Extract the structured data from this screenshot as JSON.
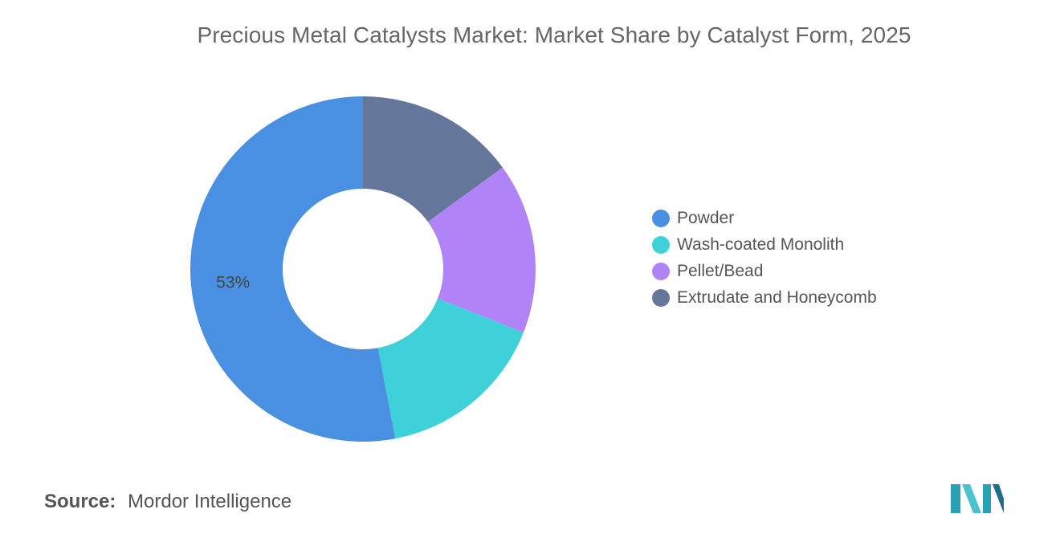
{
  "chart_data": {
    "type": "pie",
    "title": "Precious Metal Catalysts Market: Market Share by Catalyst Form, 2025",
    "categories": [
      "Powder",
      "Wash-coated Monolith",
      "Pellet/Bead",
      "Extrudate and Honeycomb"
    ],
    "values": [
      53,
      16,
      16,
      15
    ],
    "colors": [
      "#4a90e2",
      "#3fd1da",
      "#b084f7",
      "#64769a"
    ],
    "data_labels": [
      "53%",
      "",
      "",
      ""
    ],
    "donut": true,
    "legend_position": "right"
  },
  "source": {
    "label": "Source:",
    "text": "Mordor Intelligence"
  },
  "logo": {
    "icon": "mordor-intelligence-logo-icon",
    "colors": [
      "#2aa0b5",
      "#4bc3cf",
      "#1f6f8b"
    ]
  }
}
